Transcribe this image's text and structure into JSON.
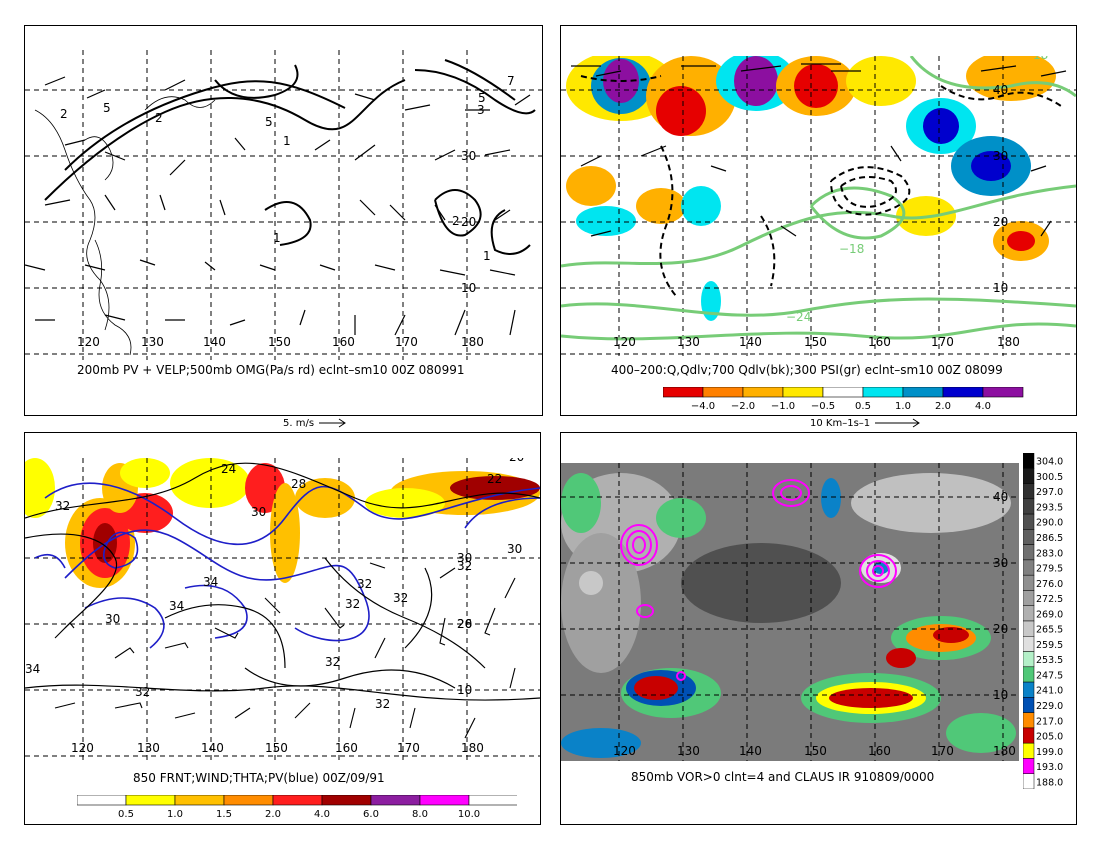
{
  "colors": {
    "pv_red": "#e0001e",
    "pv_yellow": "#ffe600",
    "pv_orange": "#f5a300",
    "pv_darkred": "#a00000",
    "blue_contour": "#1e1ec8",
    "green_contour": "#77cc77",
    "magenta": "#ff00ff"
  },
  "panels": [
    {
      "id": "tl",
      "caption": "200mb PV + VELP;500mb OMG(Pa/s rd) eclnt–sm10 00Z 080991",
      "scale_label": "5. m/s",
      "lon_labels": [
        "120",
        "130",
        "140",
        "150",
        "160",
        "170",
        "180"
      ],
      "lat_labels": [
        "30",
        "20",
        "10"
      ],
      "contour_labels": [
        "2",
        "5",
        "2",
        "5",
        "7",
        "5",
        "1",
        "1",
        "1",
        "2",
        "3"
      ]
    },
    {
      "id": "tr",
      "caption": "400–200:Q,Qdlv;700 Qdlv(bk);300 PSI(gr) eclnt–sm10 00Z 08099",
      "scale_label": "10 Km–1s–1",
      "lon_labels": [
        "120",
        "130",
        "140",
        "150",
        "160",
        "170",
        "180"
      ],
      "lat_labels": [
        "40",
        "30",
        "20",
        "10"
      ],
      "contour_labels": [
        "−18",
        "−24",
        "18"
      ]
    },
    {
      "id": "bl",
      "caption": "850 FRNT;WIND;THTA;PV(blue) 00Z/09/91",
      "lon_labels": [
        "120",
        "130",
        "140",
        "150",
        "160",
        "170",
        "180"
      ],
      "lat_labels": [
        "30",
        "20",
        "10"
      ],
      "contour_labels": [
        "24",
        "22",
        "28",
        "30",
        "20",
        "32",
        "30",
        "32",
        "34",
        "34",
        "32",
        "32",
        "26",
        "32",
        "34",
        "32",
        "30",
        "32",
        "32"
      ]
    },
    {
      "id": "br",
      "caption": "850mb VOR>0 clnt=4 and CLAUS IR 910809/0000",
      "lon_labels": [
        "120",
        "130",
        "140",
        "150",
        "160",
        "170",
        "180"
      ],
      "lat_labels": [
        "40",
        "30",
        "20",
        "10"
      ]
    }
  ],
  "chart_data": [
    {
      "type": "heatmap",
      "panel": "top-right",
      "title": "400–200:Q,Qdlv;700 Qdlv(bk);300 PSI(gr) eclnt–sm10 00Z 08099",
      "x_ticks": [
        120,
        130,
        140,
        150,
        160,
        170,
        180
      ],
      "y_ticks": [
        10,
        20,
        30,
        40
      ],
      "colorbar": {
        "labels": [
          "−4.0",
          "−2.0",
          "−1.0",
          "−0.5",
          "0.5",
          "1.0",
          "2.0",
          "4.0"
        ],
        "colors": [
          "#e60000",
          "#ff8000",
          "#ffb000",
          "#ffe800",
          "#ffffff",
          "#00e5f0",
          "#0090c8",
          "#0000cd",
          "#8c0fa0"
        ]
      },
      "vector_scale": "10 Km–1s–1"
    },
    {
      "type": "heatmap",
      "panel": "bottom-left",
      "title": "850 FRNT;WIND;THTA;PV(blue) 00Z/09/91",
      "x_ticks": [
        120,
        130,
        140,
        150,
        160,
        170,
        180
      ],
      "y_ticks": [
        10,
        20,
        30
      ],
      "colorbar": {
        "labels": [
          "0.5",
          "1.0",
          "1.5",
          "2.0",
          "4.0",
          "6.0",
          "8.0",
          "10.0"
        ],
        "colors": [
          "#ffffff",
          "#ffff00",
          "#ffc000",
          "#ff8c00",
          "#ff1e1e",
          "#a00000",
          "#8c1ea0",
          "#ff00ff",
          "#ffffff"
        ]
      }
    },
    {
      "type": "heatmap",
      "panel": "bottom-right",
      "title": "850mb VOR>0 clnt=4 and CLAUS IR 910809/0000",
      "x_ticks": [
        120,
        130,
        140,
        150,
        160,
        170,
        180
      ],
      "y_ticks": [
        10,
        20,
        30,
        40
      ],
      "colorbar": {
        "labels": [
          "304.0",
          "300.5",
          "297.0",
          "293.5",
          "290.0",
          "286.5",
          "283.0",
          "279.5",
          "276.0",
          "272.5",
          "269.0",
          "265.5",
          "259.5",
          "253.5",
          "247.5",
          "241.0",
          "229.0",
          "217.0",
          "205.0",
          "199.0",
          "193.0",
          "188.0"
        ],
        "colors": [
          "#000000",
          "#181818",
          "#303030",
          "#404040",
          "#505050",
          "#606060",
          "#707070",
          "#808080",
          "#909090",
          "#a0a0a0",
          "#b0b0b0",
          "#c8c8c8",
          "#e0e0e0",
          "#b4f0c8",
          "#50c878",
          "#0a82c8",
          "#0050b4",
          "#ff8c00",
          "#c80000",
          "#ffff00",
          "#ff00ff",
          "#ffffff"
        ]
      }
    }
  ]
}
